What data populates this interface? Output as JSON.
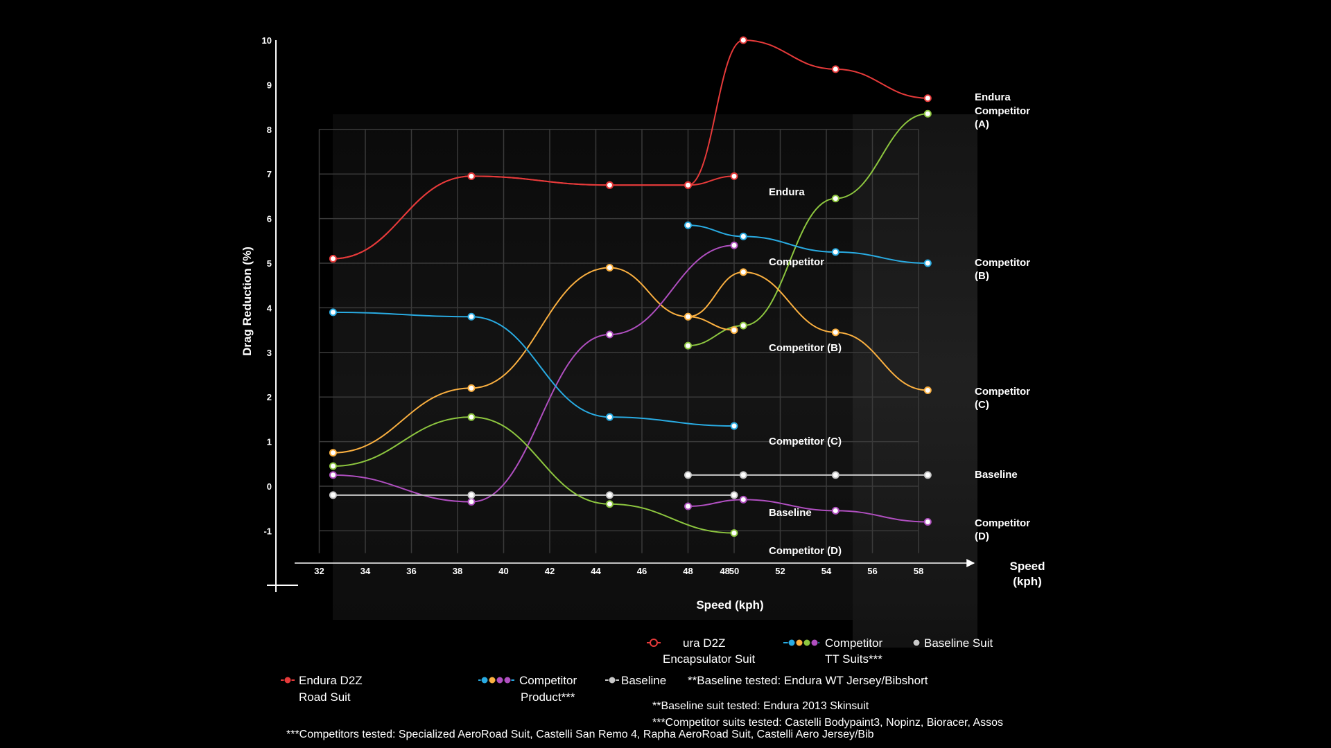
{
  "chart_data": [
    {
      "type": "line",
      "title": "",
      "xlabel": "Speed (kph)",
      "ylabel": "Drag Reduction (%)",
      "xlim": [
        31,
        59
      ],
      "ylim": [
        -1,
        10
      ],
      "x_ticks": [
        "32",
        "34",
        "36",
        "38",
        "40",
        "42",
        "44",
        "46",
        "48",
        "48",
        "50",
        "52",
        "54",
        "56",
        "58"
      ],
      "y_ticks": [
        "10",
        "9",
        "8",
        "7",
        "6",
        "5",
        "4",
        "3",
        "2",
        "1",
        "0",
        "-1"
      ],
      "grid": true,
      "series": [
        {
          "name": "Endura",
          "color": "#e63a3a",
          "points": [
            [
              32.6,
              5.1
            ],
            [
              38.6,
              6.95
            ],
            [
              44.6,
              6.75
            ],
            [
              48,
              6.75
            ],
            [
              50.4,
              10.0
            ],
            [
              54.4,
              9.35
            ],
            [
              58.4,
              8.7
            ]
          ]
        },
        {
          "name": "Competitor (A)",
          "color": "#8dc63f",
          "points": [
            [
              48,
              3.15
            ],
            [
              50.4,
              3.6
            ],
            [
              54.4,
              6.45
            ],
            [
              58.4,
              8.35
            ]
          ]
        },
        {
          "name": "Competitor (B)",
          "color": "#29abe2",
          "points": [
            [
              48,
              5.85
            ],
            [
              50.4,
              5.6
            ],
            [
              54.4,
              5.25
            ],
            [
              58.4,
              5.0
            ]
          ]
        },
        {
          "name": "Competitor (C)",
          "color": "#fbb040",
          "points": [
            [
              48,
              3.8
            ],
            [
              50.4,
              4.8
            ],
            [
              54.4,
              3.45
            ],
            [
              58.4,
              2.15
            ]
          ]
        },
        {
          "name": "Baseline",
          "color": "#c8c8c8",
          "points": [
            [
              48,
              0.25
            ],
            [
              50.4,
              0.25
            ],
            [
              54.4,
              0.25
            ],
            [
              58.4,
              0.25
            ]
          ]
        },
        {
          "name": "Competitor (D)",
          "color": "#b04fc0",
          "points": [
            [
              48,
              -0.45
            ],
            [
              50.4,
              -0.3
            ],
            [
              54.4,
              -0.55
            ],
            [
              58.4,
              -0.8
            ]
          ]
        }
      ]
    },
    {
      "type": "line",
      "title": "",
      "xlabel": "Speed (kph)",
      "ylabel": "",
      "series": [
        {
          "name": "Endura",
          "color": "#e63a3a",
          "points": [
            [
              32.6,
              5.1
            ],
            [
              38.6,
              6.95
            ],
            [
              44.6,
              6.75
            ],
            [
              48,
              6.75
            ],
            [
              50,
              6.95
            ]
          ]
        },
        {
          "name": "Competitor",
          "color": "#fbb040",
          "points": [
            [
              32.6,
              0.75
            ],
            [
              38.6,
              2.2
            ],
            [
              44.6,
              4.9
            ],
            [
              48,
              3.8
            ],
            [
              50,
              3.5
            ]
          ]
        },
        {
          "name": "Competitor (B)",
          "color": "#b04fc0",
          "points": [
            [
              32.6,
              0.25
            ],
            [
              38.6,
              -0.35
            ],
            [
              44.6,
              3.4
            ],
            [
              50,
              5.4
            ]
          ]
        },
        {
          "name": "Competitor (C)",
          "color": "#29abe2",
          "points": [
            [
              32.6,
              3.9
            ],
            [
              38.6,
              3.8
            ],
            [
              44.6,
              1.55
            ],
            [
              50,
              1.35
            ]
          ]
        },
        {
          "name": "Baseline",
          "color": "#c8c8c8",
          "points": [
            [
              32.6,
              -0.2
            ],
            [
              38.6,
              -0.2
            ],
            [
              44.6,
              -0.2
            ],
            [
              50,
              -0.2
            ]
          ]
        },
        {
          "name": "Competitor  (D)",
          "color": "#8dc63f",
          "points": [
            [
              32.6,
              0.45
            ],
            [
              38.6,
              1.55
            ],
            [
              44.6,
              -0.4
            ],
            [
              50,
              -1.05
            ]
          ]
        }
      ]
    }
  ],
  "labels": {
    "right_endura": "Endura",
    "right_compA_1": "Competitor",
    "right_compA_2": "(A)",
    "right_compB_1": "Competitor",
    "right_compB_2": "(B)",
    "right_compC_1": "Competitor",
    "right_compC_2": "(C)",
    "right_baseline": "Baseline",
    "right_compD_1": "Competitor",
    "right_compD_2": "(D)",
    "left_endura": "Endura",
    "left_competitor": "Competitor",
    "left_compB": "Competitor (B)",
    "left_compC": "Competitor (C)",
    "left_baseline": "Baseline",
    "left_compD": "Competitor  (D)",
    "speed_right_1": "Speed",
    "speed_right_2": "(kph)",
    "speed_bottom": "Speed (kph)",
    "ylabel": "Drag Reduction (%)"
  },
  "legend": {
    "encapsulator_1": "ura D2Z",
    "encapsulator_2": "Encapsulator Suit",
    "tt_1": "Competitor",
    "tt_2": "TT Suits***",
    "baseline_suit": "Baseline Suit",
    "road_1": "Endura D2Z",
    "road_2": "Road Suit",
    "product_1": "Competitor",
    "product_2": "Product***",
    "baseline": "Baseline",
    "note_baseline_tested": "**Baseline tested: Endura WT Jersey/Bibshort",
    "note_baseline_suit": "**Baseline suit tested: Endura 2013 Skinsuit",
    "note_competitor_suits": "***Competitor suits tested: Castelli Bodypaint3, Nopinz, Bioracer, Assos",
    "note_competitors_tested": "***Competitors tested: Specialized AeroRoad Suit, Castelli San Remo 4, Rapha  AeroRoad Suit, Castelli Aero Jersey/Bib"
  },
  "colors": {
    "red": "#e63a3a",
    "green": "#8dc63f",
    "blue": "#29abe2",
    "orange": "#fbb040",
    "purple": "#b04fc0",
    "grey": "#c8c8c8",
    "background": "#000000"
  }
}
